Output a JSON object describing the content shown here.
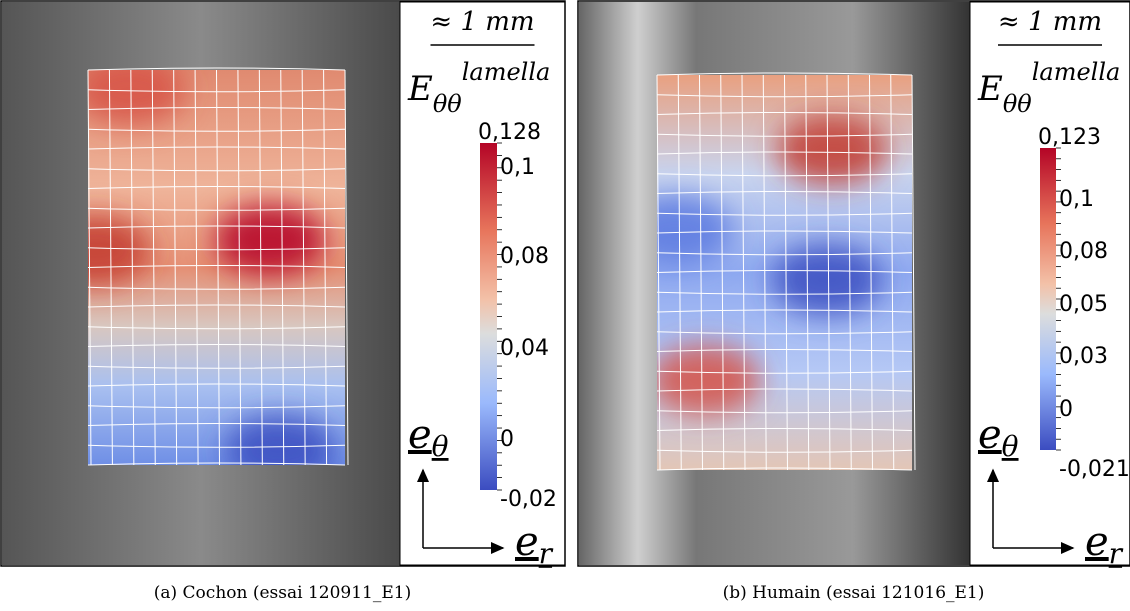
{
  "panels": [
    {
      "caption": "(a) Cochon (essai 120911_E1)",
      "scale": "≈ 1 mm",
      "label": {
        "base": "E",
        "sub": "θθ",
        "sup": "lamella"
      },
      "colorbar": {
        "ticks": [
          "0,128",
          "0,1",
          "0,08",
          "0,04",
          "0",
          "-0,02"
        ]
      },
      "axes": {
        "vertical": "e",
        "vertical_sub": "θ",
        "horizontal": "e",
        "horizontal_sub": "r"
      }
    },
    {
      "caption": "(b) Humain (essai 121016_E1)",
      "scale": "≈ 1 mm",
      "label": {
        "base": "E",
        "sub": "θθ",
        "sup": "lamella"
      },
      "colorbar": {
        "ticks": [
          "0,123",
          "0,1",
          "0,08",
          "0,05",
          "0,03",
          "0",
          "-0,021"
        ]
      },
      "axes": {
        "vertical": "e",
        "vertical_sub": "θ",
        "horizontal": "e",
        "horizontal_sub": "r"
      }
    }
  ]
}
